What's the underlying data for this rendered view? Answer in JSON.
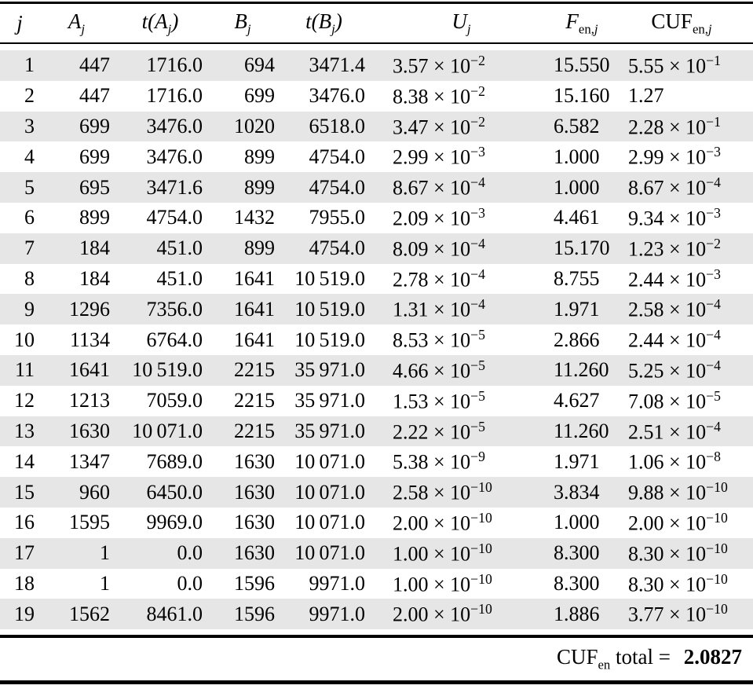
{
  "table": {
    "times_ten": " × 10",
    "stripe_color": "#e6e6e6",
    "rule_color": "#000000",
    "columns": [
      {
        "key": "j",
        "pre": "j",
        "italic": true,
        "sub_roman": "",
        "sub_italic": "",
        "post": ""
      },
      {
        "key": "a",
        "pre": "A",
        "italic": true,
        "sub_roman": "",
        "sub_italic": "j",
        "post": ""
      },
      {
        "key": "ta",
        "pre": "t(A",
        "italic": true,
        "sub_roman": "",
        "sub_italic": "j",
        "post": ")"
      },
      {
        "key": "b",
        "pre": "B",
        "italic": true,
        "sub_roman": "",
        "sub_italic": "j",
        "post": ""
      },
      {
        "key": "tb",
        "pre": "t(B",
        "italic": true,
        "sub_roman": "",
        "sub_italic": "j",
        "post": ")"
      },
      {
        "key": "u",
        "pre": "U",
        "italic": true,
        "sub_roman": "",
        "sub_italic": "j",
        "post": ""
      },
      {
        "key": "f",
        "pre": "F",
        "italic": true,
        "sub_roman": "en,",
        "sub_italic": "j",
        "post": ""
      },
      {
        "key": "cuf",
        "pre": "CUF",
        "italic": false,
        "sub_roman": "en,",
        "sub_italic": "j",
        "post": ""
      }
    ],
    "rows": [
      {
        "j": "1",
        "a": "447",
        "ta": "1716.0",
        "b": "694",
        "tb": "3471.4",
        "u": [
          "3.57",
          "−2"
        ],
        "f": "15.550",
        "cuf": [
          "5.55",
          "−1"
        ]
      },
      {
        "j": "2",
        "a": "447",
        "ta": "1716.0",
        "b": "699",
        "tb": "3476.0",
        "u": [
          "8.38",
          "−2"
        ],
        "f": "15.160",
        "cuf": [
          "1.27",
          null
        ]
      },
      {
        "j": "3",
        "a": "699",
        "ta": "3476.0",
        "b": "1020",
        "tb": "6518.0",
        "u": [
          "3.47",
          "−2"
        ],
        "f": "6.582",
        "cuf": [
          "2.28",
          "−1"
        ]
      },
      {
        "j": "4",
        "a": "699",
        "ta": "3476.0",
        "b": "899",
        "tb": "4754.0",
        "u": [
          "2.99",
          "−3"
        ],
        "f": "1.000",
        "cuf": [
          "2.99",
          "−3"
        ]
      },
      {
        "j": "5",
        "a": "695",
        "ta": "3471.6",
        "b": "899",
        "tb": "4754.0",
        "u": [
          "8.67",
          "−4"
        ],
        "f": "1.000",
        "cuf": [
          "8.67",
          "−4"
        ]
      },
      {
        "j": "6",
        "a": "899",
        "ta": "4754.0",
        "b": "1432",
        "tb": "7955.0",
        "u": [
          "2.09",
          "−3"
        ],
        "f": "4.461",
        "cuf": [
          "9.34",
          "−3"
        ]
      },
      {
        "j": "7",
        "a": "184",
        "ta": "451.0",
        "b": "899",
        "tb": "4754.0",
        "u": [
          "8.09",
          "−4"
        ],
        "f": "15.170",
        "cuf": [
          "1.23",
          "−2"
        ]
      },
      {
        "j": "8",
        "a": "184",
        "ta": "451.0",
        "b": "1641",
        "tb": "10 519.0",
        "u": [
          "2.78",
          "−4"
        ],
        "f": "8.755",
        "cuf": [
          "2.44",
          "−3"
        ]
      },
      {
        "j": "9",
        "a": "1296",
        "ta": "7356.0",
        "b": "1641",
        "tb": "10 519.0",
        "u": [
          "1.31",
          "−4"
        ],
        "f": "1.971",
        "cuf": [
          "2.58",
          "−4"
        ]
      },
      {
        "j": "10",
        "a": "1134",
        "ta": "6764.0",
        "b": "1641",
        "tb": "10 519.0",
        "u": [
          "8.53",
          "−5"
        ],
        "f": "2.866",
        "cuf": [
          "2.44",
          "−4"
        ]
      },
      {
        "j": "11",
        "a": "1641",
        "ta": "10 519.0",
        "b": "2215",
        "tb": "35 971.0",
        "u": [
          "4.66",
          "−5"
        ],
        "f": "11.260",
        "cuf": [
          "5.25",
          "−4"
        ]
      },
      {
        "j": "12",
        "a": "1213",
        "ta": "7059.0",
        "b": "2215",
        "tb": "35 971.0",
        "u": [
          "1.53",
          "−5"
        ],
        "f": "4.627",
        "cuf": [
          "7.08",
          "−5"
        ]
      },
      {
        "j": "13",
        "a": "1630",
        "ta": "10 071.0",
        "b": "2215",
        "tb": "35 971.0",
        "u": [
          "2.22",
          "−5"
        ],
        "f": "11.260",
        "cuf": [
          "2.51",
          "−4"
        ]
      },
      {
        "j": "14",
        "a": "1347",
        "ta": "7689.0",
        "b": "1630",
        "tb": "10 071.0",
        "u": [
          "5.38",
          "−9"
        ],
        "f": "1.971",
        "cuf": [
          "1.06",
          "−8"
        ]
      },
      {
        "j": "15",
        "a": "960",
        "ta": "6450.0",
        "b": "1630",
        "tb": "10 071.0",
        "u": [
          "2.58",
          "−10"
        ],
        "f": "3.834",
        "cuf": [
          "9.88",
          "−10"
        ]
      },
      {
        "j": "16",
        "a": "1595",
        "ta": "9969.0",
        "b": "1630",
        "tb": "10 071.0",
        "u": [
          "2.00",
          "−10"
        ],
        "f": "1.000",
        "cuf": [
          "2.00",
          "−10"
        ]
      },
      {
        "j": "17",
        "a": "1",
        "ta": "0.0",
        "b": "1630",
        "tb": "10 071.0",
        "u": [
          "1.00",
          "−10"
        ],
        "f": "8.300",
        "cuf": [
          "8.30",
          "−10"
        ]
      },
      {
        "j": "18",
        "a": "1",
        "ta": "0.0",
        "b": "1596",
        "tb": "9971.0",
        "u": [
          "1.00",
          "−10"
        ],
        "f": "8.300",
        "cuf": [
          "8.30",
          "−10"
        ]
      },
      {
        "j": "19",
        "a": "1562",
        "ta": "8461.0",
        "b": "1596",
        "tb": "9971.0",
        "u": [
          "2.00",
          "−10"
        ],
        "f": "1.886",
        "cuf": [
          "3.77",
          "−10"
        ]
      }
    ],
    "footer": {
      "pre": "CUF",
      "sub": "en",
      "mid": " total = ",
      "value": "2.0827"
    }
  }
}
